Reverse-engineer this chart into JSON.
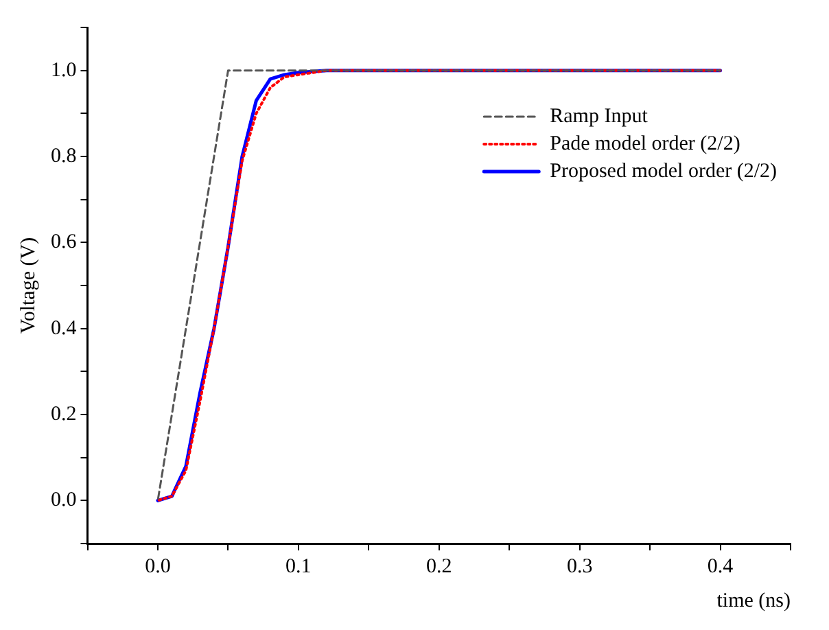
{
  "chart_data": {
    "type": "line",
    "xlabel": "time (ns)",
    "ylabel": "Voltage (V)",
    "xlim": [
      -0.05,
      0.45
    ],
    "ylim": [
      -0.1,
      1.1
    ],
    "xticks": [
      {
        "value": -0.05,
        "label": null
      },
      {
        "value": 0,
        "label": "0.0"
      },
      {
        "value": 0.05,
        "label": null
      },
      0.1,
      {
        "value": 0.15,
        "label": null
      },
      0.2,
      {
        "value": 0.25,
        "label": null
      },
      0.3,
      {
        "value": 0.35,
        "label": null
      },
      0.4,
      {
        "value": 0.45,
        "label": null
      }
    ],
    "yticks": [
      {
        "value": -0.1,
        "label": null
      },
      {
        "value": 0,
        "label": "0.0"
      },
      {
        "value": 0.1,
        "label": null
      },
      0.2,
      {
        "value": 0.3,
        "label": null
      },
      0.4,
      {
        "value": 0.5,
        "label": null
      },
      0.6,
      {
        "value": 0.7,
        "label": null
      },
      0.8,
      {
        "value": 0.9,
        "label": null
      },
      {
        "value": 1,
        "label": "1.0"
      },
      {
        "value": 1.1,
        "label": null
      }
    ],
    "grid": false,
    "legend": "top right",
    "marker": "none",
    "series": [
      {
        "name": "Ramp Input",
        "color": "#555555",
        "line_style": "dashed",
        "x": [
          0,
          0.05,
          0.4
        ],
        "values": [
          0,
          1,
          1
        ]
      },
      {
        "name": "Pade model order (2/2)",
        "color": "#ff0000",
        "line_style": "dotted",
        "x": [
          0,
          0.01,
          0.02,
          0.03,
          0.04,
          0.05,
          0.06,
          0.07,
          0.08,
          0.09,
          0.1,
          0.12,
          0.15,
          0.2,
          0.3,
          0.4
        ],
        "values": [
          0,
          0.01,
          0.07,
          0.23,
          0.4,
          0.59,
          0.79,
          0.9,
          0.96,
          0.985,
          0.99,
          1.0,
          1.0,
          1.0,
          1.0,
          1.0
        ]
      },
      {
        "name": "Proposed model order (2/2)",
        "color": "#0000ff",
        "line_style": "solid",
        "x": [
          0,
          0.01,
          0.02,
          0.03,
          0.04,
          0.05,
          0.06,
          0.07,
          0.08,
          0.09,
          0.1,
          0.12,
          0.15,
          0.2,
          0.3,
          0.4
        ],
        "values": [
          0,
          0.01,
          0.08,
          0.25,
          0.4,
          0.59,
          0.8,
          0.93,
          0.98,
          0.99,
          0.995,
          1.0,
          1.0,
          1.0,
          1.0,
          1.0
        ]
      }
    ]
  }
}
